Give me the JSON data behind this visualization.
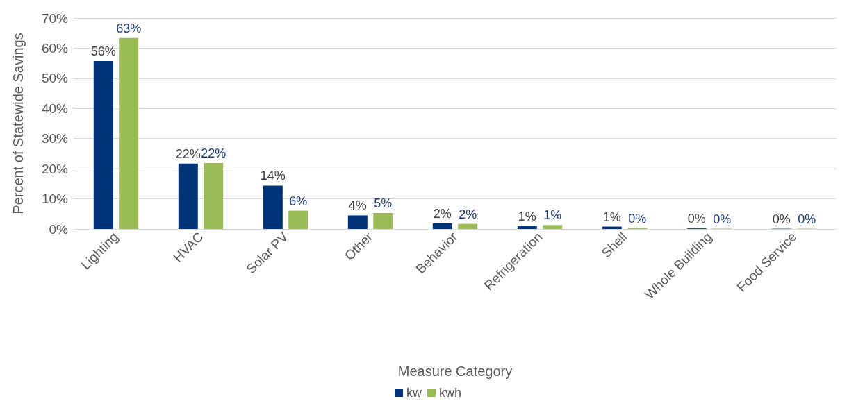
{
  "chart_data": {
    "type": "bar",
    "xlabel": "Measure Category",
    "ylabel": "Percent of Statewide Savings",
    "categories": [
      "Lighting",
      "HVAC",
      "Solar PV",
      "Other",
      "Behavior",
      "Refrigeration",
      "Shell",
      "Whole Building",
      "Food Service"
    ],
    "series": [
      {
        "name": "kw",
        "color": "#003478",
        "values": [
          55.7,
          21.7,
          14.4,
          4.5,
          1.9,
          1.0,
          0.8,
          0.2,
          0.1
        ],
        "value_labels": [
          "56%",
          "22%",
          "14%",
          "4%",
          "2%",
          "1%",
          "1%",
          "0%",
          "0%"
        ]
      },
      {
        "name": "kwh",
        "color": "#9bbb59",
        "values": [
          63.4,
          21.9,
          6.1,
          5.3,
          1.7,
          1.3,
          0.3,
          0.1,
          0.1
        ],
        "value_labels": [
          "63%",
          "22%",
          "6%",
          "5%",
          "2%",
          "1%",
          "0%",
          "0%",
          "0%"
        ]
      }
    ],
    "ylim": [
      0,
      70
    ],
    "yticks": [
      {
        "value": 0,
        "label": "0%"
      },
      {
        "value": 10,
        "label": "10%"
      },
      {
        "value": 20,
        "label": "20%"
      },
      {
        "value": 30,
        "label": "30%"
      },
      {
        "value": 40,
        "label": "40%"
      },
      {
        "value": 50,
        "label": "50%"
      },
      {
        "value": 60,
        "label": "60%"
      },
      {
        "value": 70,
        "label": "70%"
      }
    ],
    "grid": "y",
    "legend": "bottom"
  }
}
